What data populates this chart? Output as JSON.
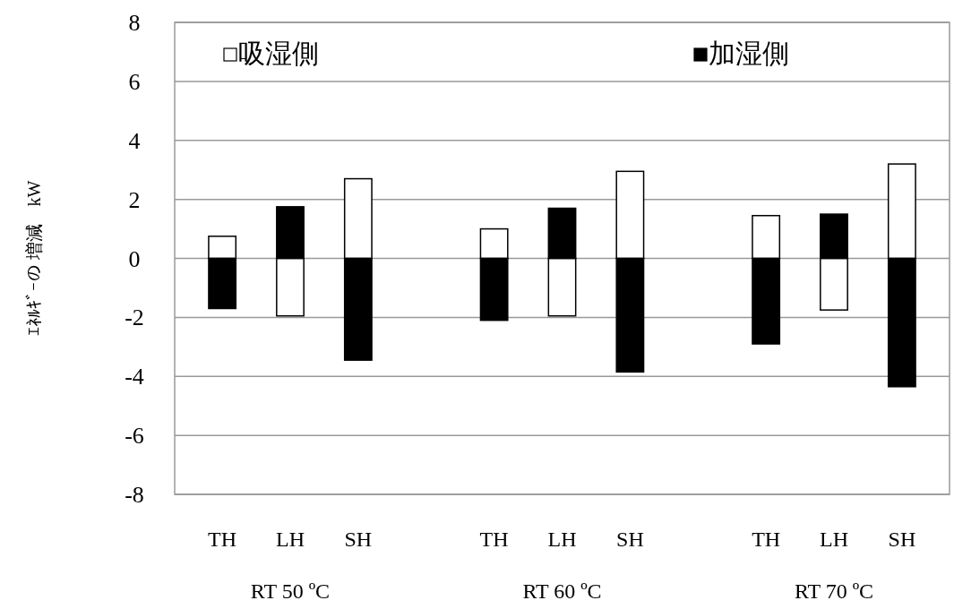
{
  "chart_data": {
    "type": "bar",
    "stacked": true,
    "categories": [
      "TH",
      "LH",
      "SH",
      null,
      "TH",
      "LH",
      "SH",
      null,
      "TH",
      "LH",
      "SH"
    ],
    "series": [
      {
        "name": "吸湿側",
        "color": "#ffffff",
        "values": [
          0.75,
          -1.95,
          2.7,
          null,
          1.0,
          -1.95,
          2.95,
          null,
          1.45,
          -1.75,
          3.2
        ]
      },
      {
        "name": "加湿側",
        "color": "#000000",
        "values": [
          -1.7,
          1.75,
          -3.45,
          null,
          -2.1,
          1.7,
          -3.85,
          null,
          -2.9,
          1.5,
          -4.35
        ]
      }
    ],
    "ylabel": "ｴﾈﾙｷﾞｰの 増減　kW",
    "annotations": [
      "RT 50 ºC",
      "RT 60 ºC",
      "RT 70 ºC"
    ],
    "ylim": [
      -8,
      8
    ],
    "yticks": [
      -8,
      -6,
      -4,
      -2,
      0,
      2,
      4,
      6,
      8
    ],
    "grid": "y",
    "legend": "top"
  }
}
